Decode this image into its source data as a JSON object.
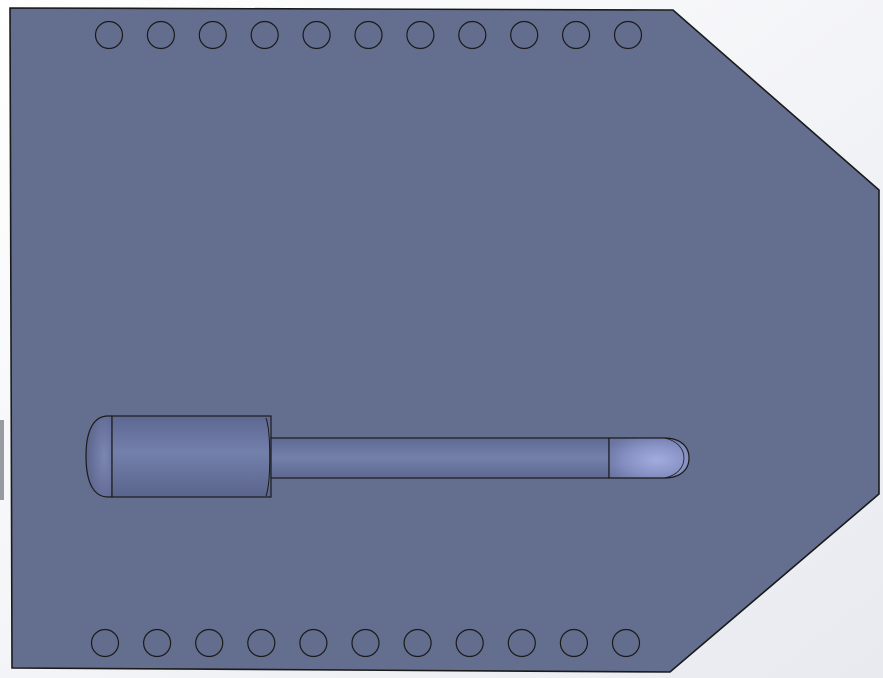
{
  "view": {
    "background_top": "#ffffff",
    "background_bottom": "#e8eaf0"
  },
  "part": {
    "face_color": "#646f8f",
    "edge_color": "#1a1a1a"
  },
  "holes": {
    "top_row_count": 11,
    "bottom_row_count": 11,
    "fill_color": "#636d8d"
  },
  "channel": {
    "body_color": "#6c78a2",
    "highlight_color": "#9aa2d4"
  }
}
